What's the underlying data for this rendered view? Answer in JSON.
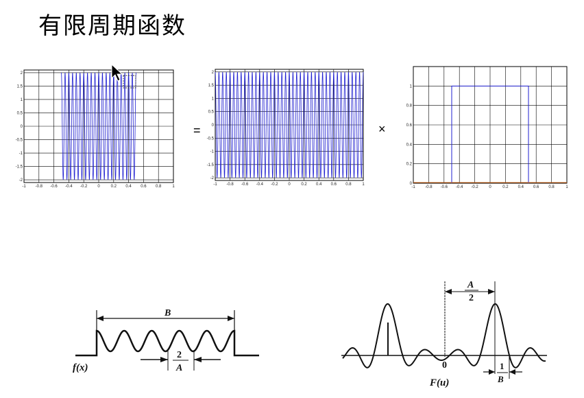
{
  "title": "有限周期函数",
  "operators": {
    "equals": "=",
    "times": "×"
  },
  "plots": {
    "left": {
      "xticks": [
        "-1",
        "-0.8",
        "-0.6",
        "-0.4",
        "-0.2",
        "0",
        "0.2",
        "0.4",
        "0.6",
        "0.8",
        "1"
      ],
      "yticks": [
        "2",
        "1.5",
        "1",
        "0.5",
        "0",
        "-0.5",
        "-1",
        "-1.5",
        "-2"
      ]
    },
    "middle": {
      "xticks": [
        "-1",
        "-0.8",
        "-0.6",
        "-0.4",
        "-0.2",
        "0",
        "0.2",
        "0.4",
        "0.6",
        "0.8",
        "1"
      ],
      "yticks": [
        "2",
        "1.5",
        "1",
        "0.5",
        "0",
        "-0.5",
        "-1",
        "-1.5",
        "-2"
      ]
    },
    "right": {
      "xticks": [
        "-1",
        "-0.8",
        "-0.6",
        "-0.4",
        "-0.2",
        "0",
        "0.2",
        "0.4",
        "0.6",
        "0.8",
        "1"
      ],
      "yticks": [
        "1",
        "0.8",
        "0.6",
        "0.4",
        "0.2",
        "0"
      ]
    }
  },
  "bottom_left": {
    "label_B": "B",
    "fraction_num": "2",
    "fraction_den": "A",
    "func": "f(x)"
  },
  "bottom_right": {
    "fraction_num": "A",
    "fraction_den": "2",
    "zero": "0",
    "fraction2_num": "1",
    "fraction2_den": "B",
    "func": "F(u)"
  }
}
